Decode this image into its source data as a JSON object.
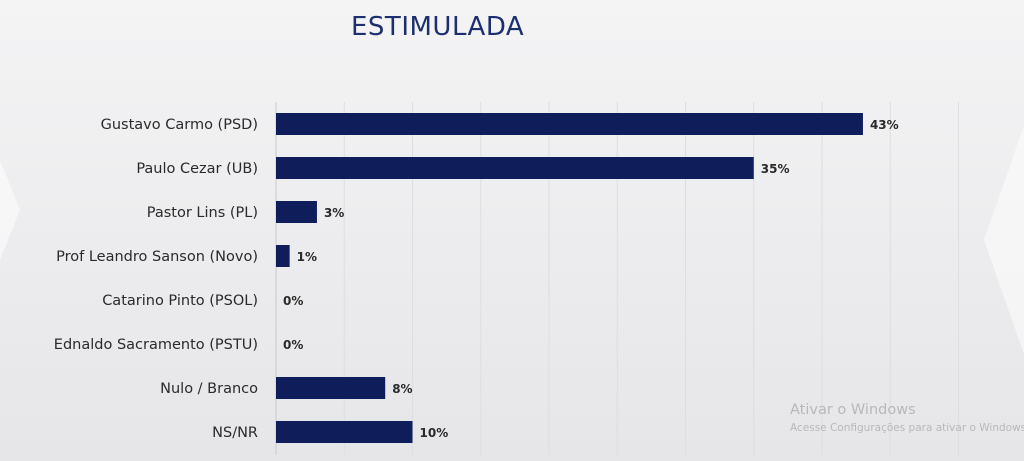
{
  "title": "ESTIMULADA",
  "chart_data": {
    "type": "bar",
    "orientation": "horizontal",
    "title": "ESTIMULADA",
    "categories": [
      "Gustavo Carmo (PSD)",
      "Paulo Cezar (UB)",
      "Pastor Lins (PL)",
      "Prof Leandro Sanson (Novo)",
      "Catarino Pinto (PSOL)",
      "Ednaldo Sacramento (PSTU)",
      "Nulo / Branco",
      "NS/NR"
    ],
    "values": [
      43,
      35,
      3,
      1,
      0,
      0,
      8,
      10
    ],
    "value_labels": [
      "43%",
      "35%",
      "3%",
      "1%",
      "0%",
      "0%",
      "8%",
      "10%"
    ],
    "xlim": [
      0,
      50
    ],
    "grid": true,
    "bar_color": "#0f1e5a"
  },
  "watermark": {
    "title": "Ativar o Windows",
    "subtitle": "Acesse Configurações para ativar o Windows."
  }
}
